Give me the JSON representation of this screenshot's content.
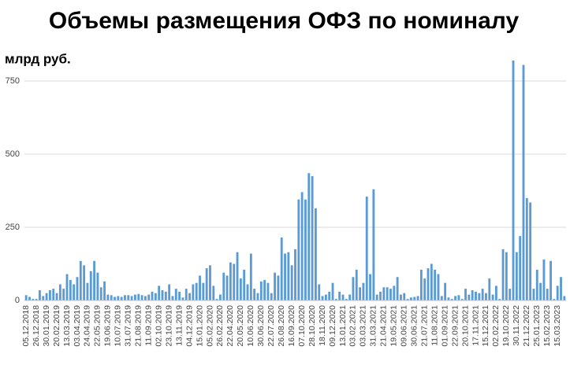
{
  "chart_data": {
    "type": "bar",
    "title": "Объемы размещения ОФЗ по номиналу",
    "y_label": "млрд руб.",
    "color": "#5b9bd5",
    "grid": true,
    "ylim": [
      0,
      830
    ],
    "yticks": [
      0,
      250,
      500,
      750
    ],
    "categories": [
      "05.12.2018",
      null,
      null,
      "26.12.2018",
      null,
      null,
      "30.01.2019",
      null,
      null,
      "20.02.2019",
      null,
      null,
      "13.03.2019",
      null,
      null,
      "03.04.2019",
      null,
      null,
      "24.04.2019",
      null,
      null,
      "22.05.2019",
      null,
      null,
      "19.06.2019",
      null,
      null,
      "10.07.2019",
      null,
      null,
      "31.07.2019",
      null,
      null,
      "21.08.2019",
      null,
      null,
      "11.09.2019",
      null,
      null,
      "02.10.2019",
      null,
      null,
      "23.10.2019",
      null,
      null,
      "13.11.2019",
      null,
      null,
      "04.12.2019",
      null,
      null,
      "15.01.2020",
      null,
      null,
      "05.02.2020",
      null,
      null,
      "26.02.2020",
      null,
      null,
      "22.04.2020",
      null,
      null,
      "20.05.2020",
      null,
      null,
      "10.06.2020",
      null,
      null,
      "30.06.2020",
      null,
      null,
      "22.07.2020",
      null,
      null,
      "26.08.2020",
      null,
      null,
      "16.09.2020",
      null,
      null,
      "07.10.2020",
      null,
      null,
      "28.10.2020",
      null,
      null,
      "18.11.2020",
      null,
      null,
      "09.12.2020",
      null,
      null,
      "13.01.2021",
      null,
      null,
      "03.02.2021",
      null,
      null,
      "03.03.2021",
      null,
      null,
      "31.03.2021",
      null,
      null,
      "21.04.2021",
      null,
      null,
      "19.05.2021",
      null,
      null,
      "09.06.2021",
      null,
      null,
      "30.06.2021",
      null,
      null,
      "21.07.2021",
      null,
      null,
      "11.08.2021",
      null,
      null,
      "01.09.2021",
      null,
      null,
      "22.09.2021",
      null,
      null,
      "20.10.2021",
      null,
      null,
      "17.11.2021",
      null,
      null,
      "15.12.2021",
      null,
      null,
      "02.02.2022",
      null,
      null,
      "19.10.2022",
      null,
      null,
      "30.11.2022",
      null,
      null,
      "21.12.2022",
      null,
      null,
      "25.01.2023",
      null,
      null,
      "15.02.2023",
      null,
      null,
      "15.03.2023",
      null,
      null
    ],
    "values": [
      18,
      12,
      5,
      5,
      35,
      15,
      25,
      35,
      40,
      25,
      55,
      40,
      90,
      70,
      55,
      80,
      135,
      120,
      60,
      100,
      135,
      95,
      45,
      65,
      20,
      18,
      12,
      15,
      12,
      18,
      18,
      15,
      20,
      22,
      18,
      15,
      20,
      30,
      25,
      50,
      35,
      30,
      55,
      15,
      40,
      30,
      10,
      40,
      25,
      55,
      60,
      85,
      60,
      110,
      120,
      50,
      5,
      20,
      95,
      85,
      130,
      125,
      165,
      75,
      105,
      55,
      160,
      40,
      25,
      65,
      70,
      60,
      25,
      95,
      85,
      215,
      160,
      165,
      120,
      175,
      345,
      370,
      345,
      435,
      425,
      315,
      55,
      15,
      20,
      30,
      60,
      5,
      30,
      20,
      5,
      20,
      80,
      105,
      45,
      60,
      355,
      90,
      380,
      20,
      30,
      45,
      45,
      40,
      50,
      80,
      20,
      25,
      5,
      10,
      12,
      15,
      105,
      75,
      110,
      125,
      105,
      90,
      15,
      60,
      10,
      5,
      15,
      18,
      5,
      40,
      20,
      35,
      30,
      25,
      40,
      25,
      75,
      20,
      50,
      5,
      175,
      165,
      40,
      820,
      165,
      220,
      805,
      350,
      335,
      40,
      105,
      60,
      140,
      40,
      135,
      5,
      50,
      80,
      15
    ]
  }
}
